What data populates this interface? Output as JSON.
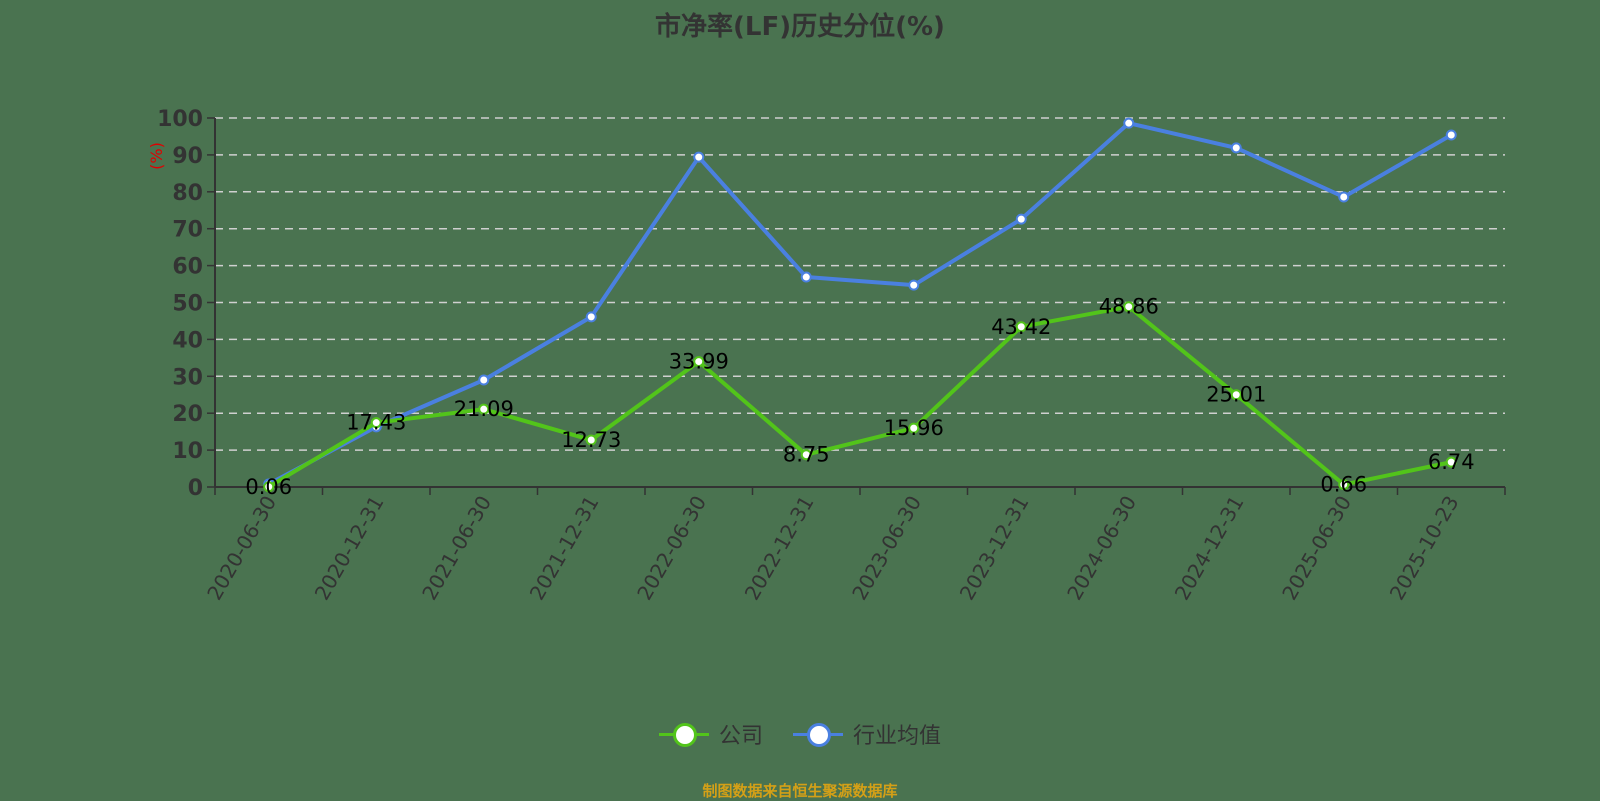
{
  "title": "市净率(LF)历史分位(%)",
  "y_unit_label": "(%)",
  "legend": [
    {
      "label": "公司",
      "color": "#52c41a"
    },
    {
      "label": "行业均值",
      "color": "#4a80e0"
    }
  ],
  "source": "制图数据来自恒生聚源数据库",
  "colors": {
    "background": "#4a7350",
    "company": "#52c41a",
    "industry": "#4a80e0",
    "grid": "#d0d0d0",
    "axis": "#333333",
    "y_unit": "#e00000",
    "source": "#d4a017"
  },
  "chart_data": {
    "type": "line",
    "title": "市净率(LF)历史分位(%)",
    "xlabel": "",
    "ylabel": "(%)",
    "ylim": [
      0,
      100
    ],
    "yticks": [
      0,
      10,
      20,
      30,
      40,
      50,
      60,
      70,
      80,
      90,
      100
    ],
    "grid": true,
    "legend_position": "bottom",
    "categories": [
      "2020-06-30",
      "2020-12-31",
      "2021-06-30",
      "2021-12-31",
      "2022-06-30",
      "2022-12-31",
      "2023-06-30",
      "2023-12-31",
      "2024-06-30",
      "2024-12-31",
      "2025-06-30",
      "2025-10-23"
    ],
    "series": [
      {
        "name": "公司",
        "values": [
          0.06,
          17.43,
          21.09,
          12.73,
          33.99,
          8.75,
          15.96,
          43.42,
          48.86,
          25.01,
          0.66,
          6.74
        ],
        "labels": [
          "0.06",
          "17.43",
          "21.09",
          "12.73",
          "33.99",
          "8.75",
          "15.96",
          "43.42",
          "48.86",
          "25.01",
          "0.66",
          "6.74"
        ]
      },
      {
        "name": "行业均值",
        "values": [
          0.8,
          16.3,
          29.0,
          46.1,
          89.4,
          56.9,
          54.7,
          72.6,
          98.6,
          91.9,
          78.6,
          95.4
        ]
      }
    ]
  }
}
